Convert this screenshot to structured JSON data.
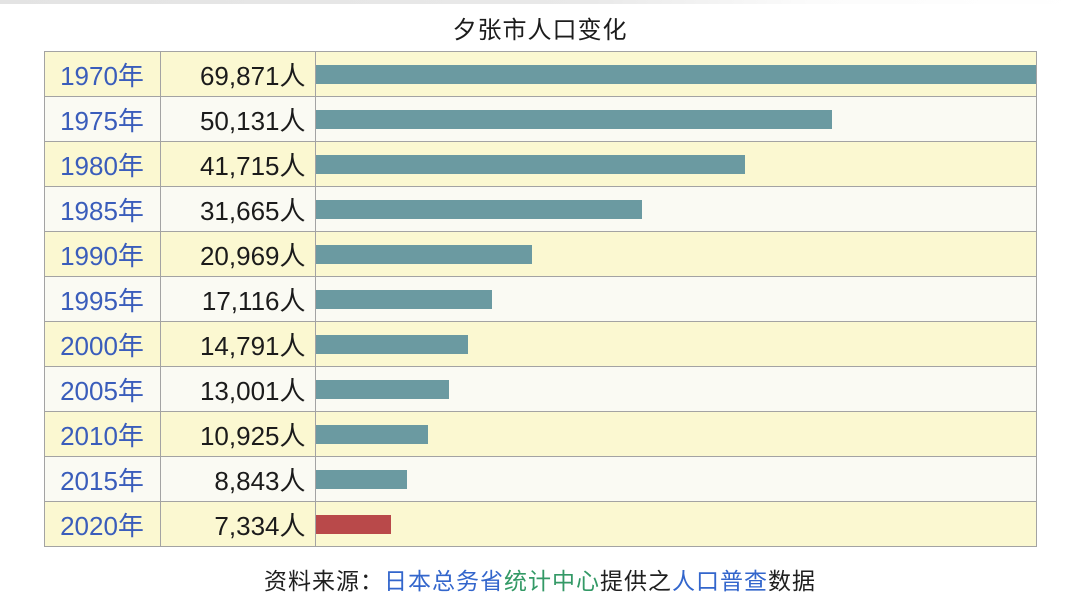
{
  "page": {
    "title": "夕张市人口变化"
  },
  "chart_data": {
    "type": "bar",
    "orientation": "horizontal",
    "title": "夕张市人口变化",
    "unit": "人",
    "xlabel": "",
    "ylabel": "",
    "value_range": [
      0,
      69871
    ],
    "max_value": 69871,
    "bar_color": "#6b9aa1",
    "highlight_color": "#b9494a",
    "row_bg_odd": "#fbf8d1",
    "row_bg_even": "#fafaf3",
    "categories": [
      "1970年",
      "1975年",
      "1980年",
      "1985年",
      "1990年",
      "1995年",
      "2000年",
      "2005年",
      "2010年",
      "2015年",
      "2020年"
    ],
    "values": [
      69871,
      50131,
      41715,
      31665,
      20969,
      17116,
      14791,
      13001,
      10925,
      8843,
      7334
    ],
    "rows": [
      {
        "year": "1970年",
        "label": "69,871人",
        "value": 69871,
        "highlight": false
      },
      {
        "year": "1975年",
        "label": "50,131人",
        "value": 50131,
        "highlight": false
      },
      {
        "year": "1980年",
        "label": "41,715人",
        "value": 41715,
        "highlight": false
      },
      {
        "year": "1985年",
        "label": "31,665人",
        "value": 31665,
        "highlight": false
      },
      {
        "year": "1990年",
        "label": "20,969人",
        "value": 20969,
        "highlight": false
      },
      {
        "year": "1995年",
        "label": "17,116人",
        "value": 17116,
        "highlight": false
      },
      {
        "year": "2000年",
        "label": "14,791人",
        "value": 14791,
        "highlight": false
      },
      {
        "year": "2005年",
        "label": "13,001人",
        "value": 13001,
        "highlight": false
      },
      {
        "year": "2010年",
        "label": "10,925人",
        "value": 10925,
        "highlight": false
      },
      {
        "year": "2015年",
        "label": "8,843人",
        "value": 8843,
        "highlight": false
      },
      {
        "year": "2020年",
        "label": "7,334人",
        "value": 7334,
        "highlight": true
      }
    ]
  },
  "source": {
    "segments": [
      {
        "text": "资料来源：",
        "type": "plain",
        "interactable": false
      },
      {
        "text": "日本总务省",
        "type": "link-blue",
        "interactable": true
      },
      {
        "text": "统计中心",
        "type": "link-green",
        "interactable": true
      },
      {
        "text": "提供之",
        "type": "plain",
        "interactable": false
      },
      {
        "text": "人口普查",
        "type": "link-blue",
        "interactable": true
      },
      {
        "text": "数据",
        "type": "plain",
        "interactable": false
      }
    ]
  }
}
